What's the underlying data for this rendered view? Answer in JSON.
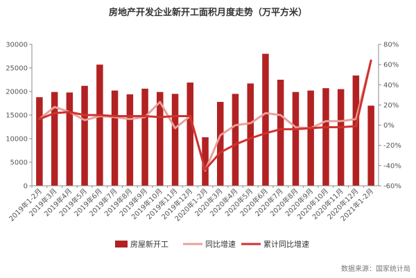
{
  "chart_data": {
    "type": "bar",
    "title": "房地产开发企业新开工面积月度走势（万平方米）",
    "categories": [
      "2019年1-2月",
      "2019年3月",
      "2019年4月",
      "2019年5月",
      "2019年6月",
      "2019年7月",
      "2019年8月",
      "2019年9月",
      "2019年10月",
      "2019年11月",
      "2019年12月",
      "2020年1-2月",
      "2020年3月",
      "2020年4月",
      "2020年5月",
      "2020年6月",
      "2020年7月",
      "2020年8月",
      "2020年9月",
      "2020年10月",
      "2020年11月",
      "2020年12月",
      "2021年1-2月"
    ],
    "series": [
      {
        "name": "房屋新开工",
        "type": "bar",
        "axis": "left",
        "color": "#b22222",
        "values": [
          18800,
          19900,
          19800,
          21200,
          25700,
          20200,
          19400,
          20600,
          19900,
          19500,
          21900,
          10300,
          17800,
          19500,
          21700,
          28000,
          22500,
          19900,
          20200,
          20700,
          20500,
          23400,
          17000
        ]
      },
      {
        "name": "同比增速",
        "type": "line",
        "axis": "right",
        "unit": "%",
        "color": "#e8a09a",
        "values": [
          6,
          18,
          13,
          5,
          9,
          8,
          6,
          8,
          23,
          -3,
          9,
          -45,
          -10,
          0,
          2,
          12,
          10,
          -2,
          -3,
          4,
          4,
          6,
          64
        ]
      },
      {
        "name": "累计同比增速",
        "type": "line",
        "axis": "right",
        "unit": "%",
        "color": "#d0312d",
        "values": [
          6,
          12,
          13,
          10,
          10,
          9,
          9,
          9,
          8,
          9,
          9,
          -44,
          -27,
          -19,
          -13,
          -8,
          -4,
          -4,
          -3,
          -2,
          -2,
          -1,
          64
        ]
      }
    ],
    "y_left": {
      "ticks": [
        "0",
        "5000",
        "10000",
        "15000",
        "20000",
        "25000",
        "30000"
      ],
      "ylim": [
        0,
        30000
      ]
    },
    "y_right": {
      "ticks": [
        "-60%",
        "-40%",
        "-20%",
        "0%",
        "20%",
        "40%",
        "60%",
        "80%"
      ],
      "ylim": [
        -60,
        80
      ]
    },
    "grid": false,
    "legend_position": "bottom",
    "source": "数据来源：国家统计局"
  }
}
